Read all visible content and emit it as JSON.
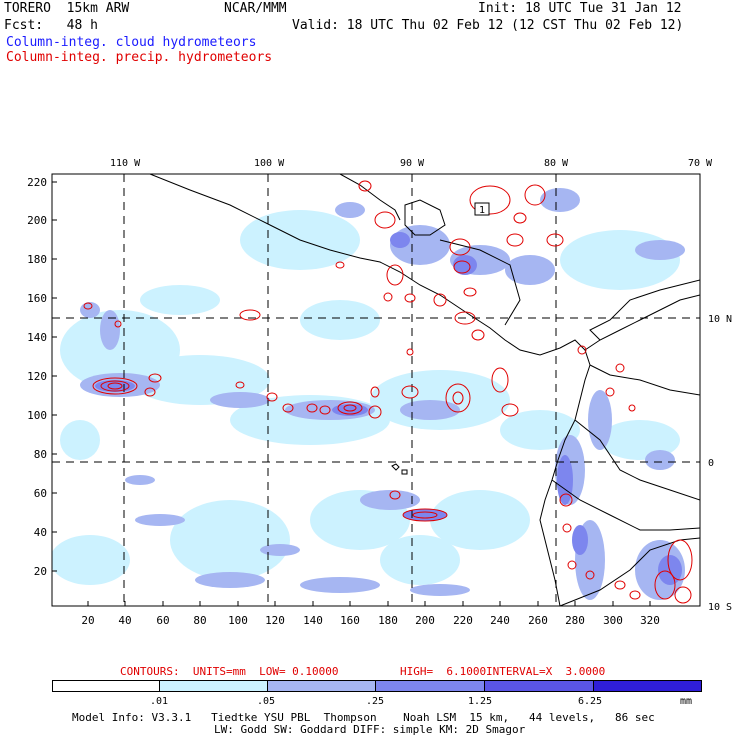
{
  "header": {
    "model": "TORERO  15km ARW",
    "org": "NCAR/MMM",
    "init": "Init: 18 UTC Tue 31 Jan 12",
    "fcst": "Fcst:   48 h",
    "valid": "Valid: 18 UTC Thu 02 Feb 12 (12 CST Thu 02 Feb 12)",
    "field1": "Column-integ. cloud hydrometeors",
    "field2": "Column-integ. precip. hydrometeors"
  },
  "map": {
    "lon_labels": [
      "110 W",
      "100 W",
      "90 W",
      "80 W",
      "70 W"
    ],
    "lat_labels": [
      "10 N",
      "0",
      "10 S"
    ],
    "y_ticks": [
      "220",
      "200",
      "180",
      "160",
      "140",
      "120",
      "100",
      "80",
      "60",
      "40",
      "20"
    ],
    "x_ticks": [
      "20",
      "40",
      "60",
      "80",
      "100",
      "120",
      "140",
      "160",
      "180",
      "200",
      "220",
      "240",
      "260",
      "280",
      "300",
      "320"
    ],
    "contour_label": "1"
  },
  "contours": {
    "units": "CONTOURS:  UNITS=mm  LOW= 0.10000",
    "high": "HIGH=  6.1000",
    "interval": "INTERVAL=X  3.0000"
  },
  "colorbar": {
    "labels": [
      ".01",
      ".05",
      ".25",
      "1.25",
      "6.25"
    ],
    "unit": "mm",
    "colors": [
      "#ffffff",
      "#ccf2ff",
      "#a6b6f2",
      "#7d86ee",
      "#5a55e6",
      "#2f1ed8"
    ]
  },
  "footer": {
    "line1": "Model Info: V3.3.1   Tiedtke YSU PBL  Thompson    Noah LSM  15 km,   44 levels,   86 sec",
    "line2": "LW: Godd SW: Goddard DIFF: simple KM: 2D Smagor"
  }
}
